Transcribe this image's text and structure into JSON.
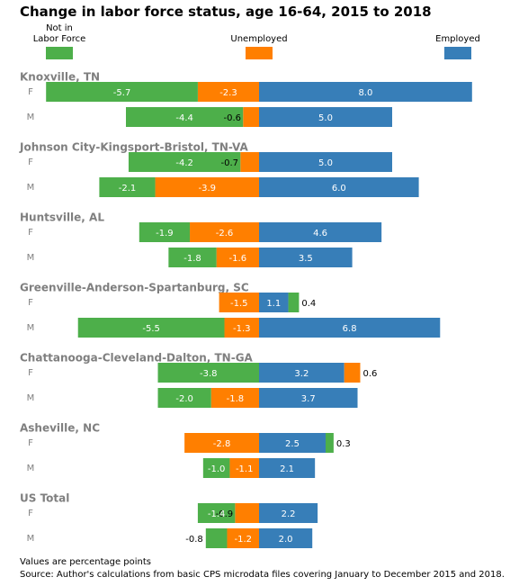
{
  "chart_data": {
    "type": "bar",
    "orientation": "horizontal",
    "stacking": "diverging",
    "title": "Change in labor force status, age 16-64, 2015 to 2018",
    "legend": [
      {
        "name": "Not in Labor Force",
        "line1": "Not in",
        "line2": "Labor Force",
        "color": "#4daf4a"
      },
      {
        "name": "Unemployed",
        "color": "#ff7f00"
      },
      {
        "name": "Employed",
        "color": "#377eb8"
      }
    ],
    "groups": [
      {
        "name": "Knoxville, TN",
        "rows": [
          {
            "sex": "F",
            "not_in_labor_force": -5.7,
            "unemployed": -2.3,
            "employed": 8.0
          },
          {
            "sex": "M",
            "not_in_labor_force": -4.4,
            "unemployed": -0.6,
            "employed": 5.0
          }
        ]
      },
      {
        "name": "Johnson City-Kingsport-Bristol, TN-VA",
        "rows": [
          {
            "sex": "F",
            "not_in_labor_force": -4.2,
            "unemployed": -0.7,
            "employed": 5.0
          },
          {
            "sex": "M",
            "not_in_labor_force": -2.1,
            "unemployed": -3.9,
            "employed": 6.0
          }
        ]
      },
      {
        "name": "Huntsville, AL",
        "rows": [
          {
            "sex": "F",
            "not_in_labor_force": -1.9,
            "unemployed": -2.6,
            "employed": 4.6
          },
          {
            "sex": "M",
            "not_in_labor_force": -1.8,
            "unemployed": -1.6,
            "employed": 3.5
          }
        ]
      },
      {
        "name": "Greenville-Anderson-Spartanburg, SC",
        "rows": [
          {
            "sex": "F",
            "not_in_labor_force": 0.4,
            "unemployed": -1.5,
            "employed": 1.1
          },
          {
            "sex": "M",
            "not_in_labor_force": -5.5,
            "unemployed": -1.3,
            "employed": 6.8
          }
        ]
      },
      {
        "name": "Chattanooga-Cleveland-Dalton, TN-GA",
        "rows": [
          {
            "sex": "F",
            "not_in_labor_force": -3.8,
            "unemployed": 0.6,
            "employed": 3.2
          },
          {
            "sex": "M",
            "not_in_labor_force": -2.0,
            "unemployed": -1.8,
            "employed": 3.7
          }
        ]
      },
      {
        "name": "Asheville, NC",
        "rows": [
          {
            "sex": "F",
            "not_in_labor_force": 0.3,
            "unemployed": -2.8,
            "employed": 2.5
          },
          {
            "sex": "M",
            "not_in_labor_force": -1.0,
            "unemployed": -1.1,
            "employed": 2.1
          }
        ]
      },
      {
        "name": "US Total",
        "rows": [
          {
            "sex": "F",
            "not_in_labor_force": -1.4,
            "unemployed": -0.9,
            "employed": 2.2
          },
          {
            "sex": "M",
            "not_in_labor_force": -0.8,
            "unemployed": -1.2,
            "employed": 2.0
          }
        ]
      }
    ],
    "xlim": [
      -8.0,
      8.0
    ],
    "grid": false
  },
  "notes": {
    "units": "Values are percentage points",
    "source": "Source: Author's calculations from basic CPS microdata files covering January to December 2015 and 2018."
  }
}
